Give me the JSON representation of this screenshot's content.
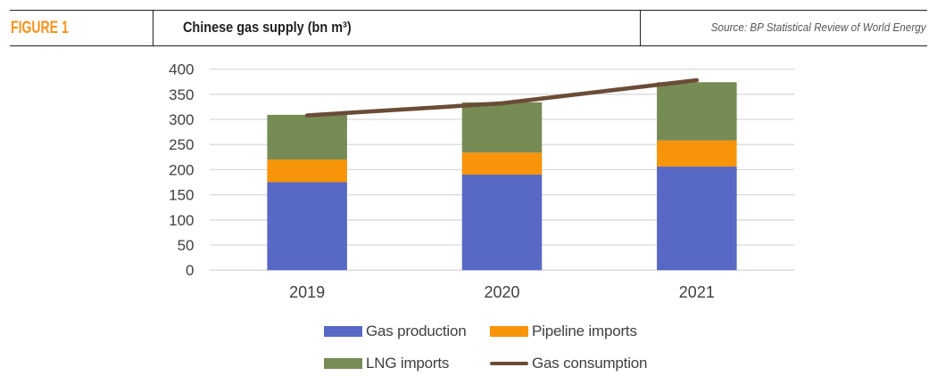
{
  "header": {
    "figure_label": "FIGURE 1",
    "title": "Chinese gas supply (bn m³)",
    "source": "Source: BP Statistical Review of World Energy"
  },
  "colors": {
    "accent_orange": "#f7941e",
    "bar_blue": "#5868c5",
    "bar_orange": "#f7940a",
    "bar_green": "#778b55",
    "line_brown": "#6a4c37",
    "axis_text": "#404040",
    "gridline": "#d9d9d9",
    "header_rule": "#231f20"
  },
  "chart_data": {
    "type": "bar",
    "subtype": "stacked-bars-with-line-overlay",
    "title": "Chinese gas supply (bn m³)",
    "categories": [
      "2019",
      "2020",
      "2021"
    ],
    "series": [
      {
        "name": "Gas production",
        "type": "bar",
        "color": "#5868c5",
        "values": [
          175,
          190,
          206
        ]
      },
      {
        "name": "Pipeline imports",
        "type": "bar",
        "color": "#f7940a",
        "values": [
          45,
          44,
          52
        ]
      },
      {
        "name": "LNG imports",
        "type": "bar",
        "color": "#778b55",
        "values": [
          89,
          100,
          116
        ]
      },
      {
        "name": "Gas consumption",
        "type": "line",
        "color": "#6a4c37",
        "values": [
          308,
          332,
          378
        ]
      }
    ],
    "xlabel": "",
    "ylabel": "",
    "ylim": [
      0,
      400
    ],
    "ytick_step": 50,
    "grid": true,
    "legend_position": "bottom"
  },
  "legend": {
    "items": [
      {
        "label": "Gas production",
        "swatch": "rect",
        "color": "#5868c5"
      },
      {
        "label": "Pipeline imports",
        "swatch": "rect",
        "color": "#f7940a"
      },
      {
        "label": "LNG imports",
        "swatch": "rect",
        "color": "#778b55"
      },
      {
        "label": "Gas consumption",
        "swatch": "line",
        "color": "#6a4c37"
      }
    ]
  }
}
